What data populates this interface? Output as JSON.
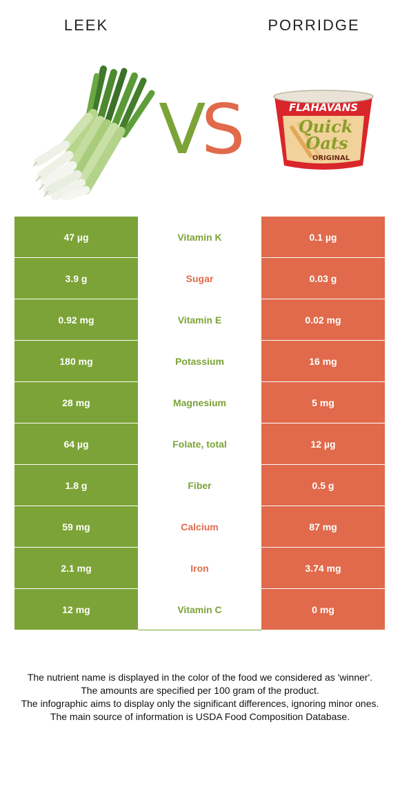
{
  "left_food": {
    "name": "LEEK",
    "color": "#7ca337"
  },
  "right_food": {
    "name": "PORRIDGE",
    "color": "#e06a4b"
  },
  "vs": {
    "v": "V",
    "s": "S"
  },
  "product_label": {
    "brand": "FLAHAVANS",
    "line1": "Quick",
    "line2": "Oats",
    "variant": "ORIGINAL"
  },
  "rows": [
    {
      "left": "47 µg",
      "nutrient": "Vitamin K",
      "right": "0.1 µg",
      "winner": "left"
    },
    {
      "left": "3.9 g",
      "nutrient": "Sugar",
      "right": "0.03 g",
      "winner": "right"
    },
    {
      "left": "0.92 mg",
      "nutrient": "Vitamin E",
      "right": "0.02 mg",
      "winner": "left"
    },
    {
      "left": "180 mg",
      "nutrient": "Potassium",
      "right": "16 mg",
      "winner": "left"
    },
    {
      "left": "28 mg",
      "nutrient": "Magnesium",
      "right": "5 mg",
      "winner": "left"
    },
    {
      "left": "64 µg",
      "nutrient": "Folate, total",
      "right": "12 µg",
      "winner": "left"
    },
    {
      "left": "1.8 g",
      "nutrient": "Fiber",
      "right": "0.5 g",
      "winner": "left"
    },
    {
      "left": "59 mg",
      "nutrient": "Calcium",
      "right": "87 mg",
      "winner": "right"
    },
    {
      "left": "2.1 mg",
      "nutrient": "Iron",
      "right": "3.74 mg",
      "winner": "right"
    },
    {
      "left": "12 mg",
      "nutrient": "Vitamin C",
      "right": "0 mg",
      "winner": "left"
    }
  ],
  "notes": [
    "The nutrient name is displayed in the color of the food we considered as 'winner'.",
    "The amounts are specified per 100 gram of the product.",
    "The infographic aims to display only the significant differences, ignoring minor ones.",
    "The main source of information is USDA Food Composition Database."
  ]
}
